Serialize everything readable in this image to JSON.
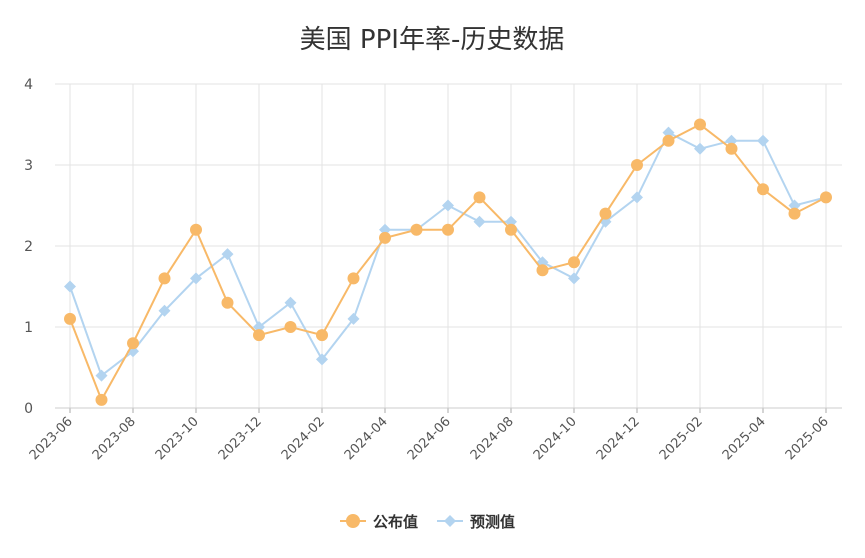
{
  "chart_data": {
    "type": "line",
    "title": "美国 PPI年率-历史数据",
    "xlabel": "",
    "ylabel": "",
    "ylim": [
      0,
      4
    ],
    "yticks": [
      0,
      1,
      2,
      3,
      4
    ],
    "grid": true,
    "legend_position": "bottom-center",
    "x": [
      "2023-06",
      "2023-07",
      "2023-08",
      "2023-09",
      "2023-10",
      "2023-11",
      "2023-12",
      "2024-01",
      "2024-02",
      "2024-03",
      "2024-04",
      "2024-05",
      "2024-06",
      "2024-07",
      "2024-08",
      "2024-09",
      "2024-10",
      "2024-11",
      "2024-12",
      "2025-01",
      "2025-02",
      "2025-03",
      "2025-04",
      "2025-05",
      "2025-06"
    ],
    "xtick_labels": [
      "2023-06",
      "2023-08",
      "2023-10",
      "2023-12",
      "2024-02",
      "2024-04",
      "2024-06",
      "2024-08",
      "2024-10",
      "2024-12",
      "2025-02",
      "2025-04",
      "2025-06"
    ],
    "series": [
      {
        "name": "公布值",
        "color": "#f8b968",
        "marker": "circle",
        "values": [
          1.1,
          0.1,
          0.8,
          1.6,
          2.2,
          1.3,
          0.9,
          1.0,
          0.9,
          1.6,
          2.1,
          2.2,
          2.2,
          2.6,
          2.2,
          1.7,
          1.8,
          2.4,
          3.0,
          3.3,
          3.5,
          3.2,
          2.7,
          2.4,
          2.6
        ]
      },
      {
        "name": "预测值",
        "color": "#b3d4f0",
        "marker": "diamond",
        "values": [
          1.5,
          0.4,
          0.7,
          1.2,
          1.6,
          1.9,
          1.0,
          1.3,
          0.6,
          1.1,
          2.2,
          2.2,
          2.5,
          2.3,
          2.3,
          1.8,
          1.6,
          2.3,
          2.6,
          3.4,
          3.2,
          3.3,
          3.3,
          2.5,
          2.6
        ]
      }
    ]
  }
}
